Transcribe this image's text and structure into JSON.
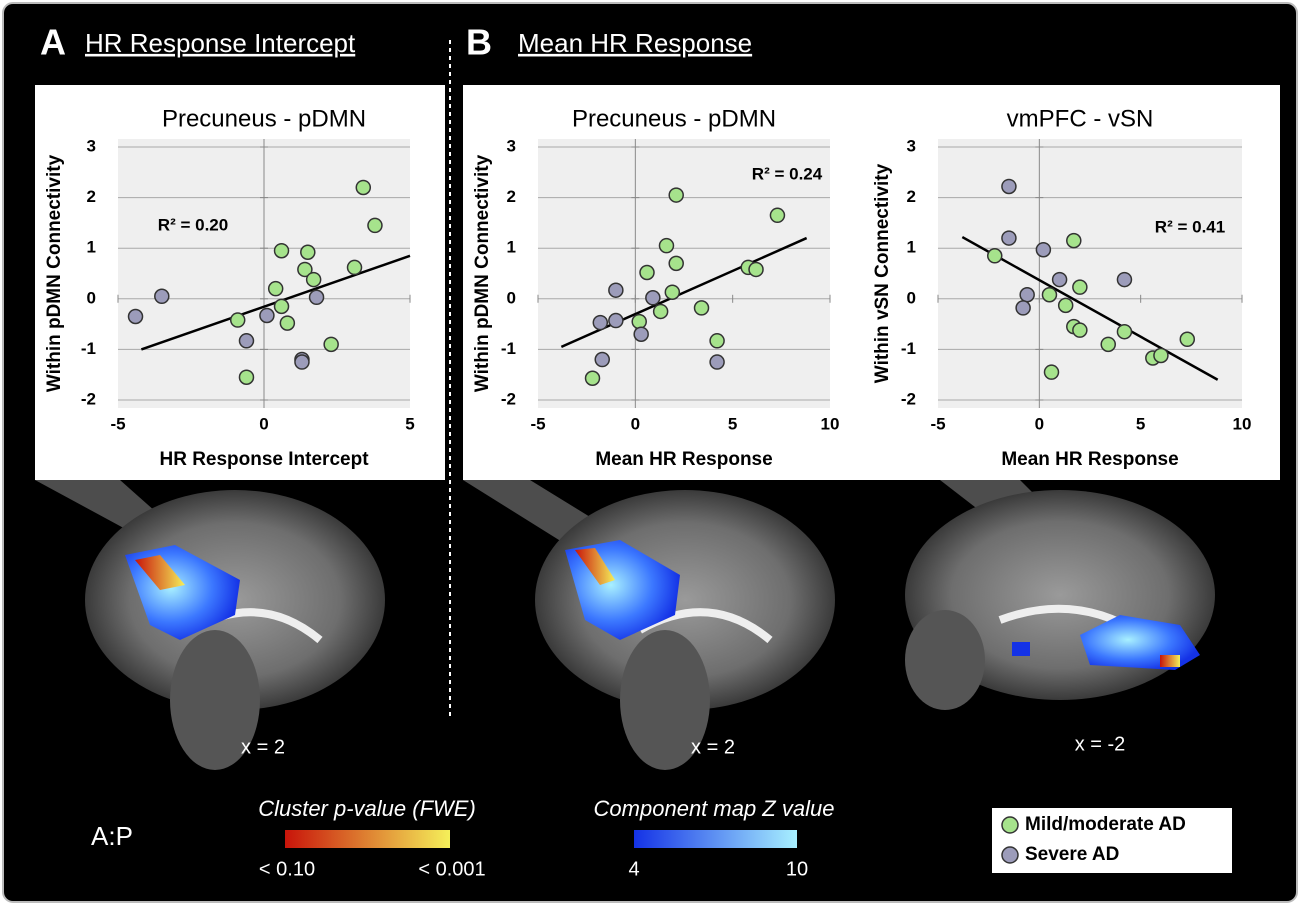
{
  "panels": [
    {
      "letter": "A",
      "title": "HR Response Intercept"
    },
    {
      "letter": "B",
      "title": "Mean HR Response"
    }
  ],
  "chart_data": [
    {
      "type": "scatter",
      "title": "Precuneus - pDMN",
      "x_label": "HR Response Intercept",
      "y_label": "Within pDMN Connectivity",
      "annotation": "R² = 0.20",
      "xlim": [
        -5,
        5
      ],
      "ylim": [
        -2,
        3
      ],
      "xticks": [
        -5,
        0,
        5
      ],
      "yticks": [
        -2,
        -1,
        0,
        1,
        2,
        3
      ],
      "grid": true,
      "series": [
        {
          "name": "Mild/moderate AD",
          "color": "#a6e38c",
          "x": [
            3.4,
            3.8,
            0.6,
            1.5,
            1.4,
            1.7,
            0.4,
            0.6,
            3.1,
            0.8,
            -0.9,
            2.3,
            -0.6
          ],
          "y": [
            2.2,
            1.45,
            0.95,
            0.92,
            0.58,
            0.38,
            0.2,
            -0.15,
            0.62,
            -0.48,
            -0.42,
            -0.9,
            -1.55
          ]
        },
        {
          "name": "Severe AD",
          "color": "#9c9cba",
          "x": [
            -4.4,
            -3.5,
            -0.6,
            0.1,
            1.8,
            1.3,
            1.3
          ],
          "y": [
            -0.35,
            0.05,
            -0.83,
            -0.33,
            0.03,
            -1.2,
            -1.25
          ]
        }
      ],
      "trendline": {
        "x": [
          -4.2,
          5
        ],
        "y": [
          -1.0,
          0.85
        ]
      }
    },
    {
      "type": "scatter",
      "title": "Precuneus - pDMN",
      "x_label": "Mean HR Response",
      "y_label": "Within pDMN Connectivity",
      "annotation": "R² = 0.24",
      "xlim": [
        -5,
        10
      ],
      "ylim": [
        -2,
        3
      ],
      "xticks": [
        -5,
        0,
        5,
        10
      ],
      "yticks": [
        -2,
        -1,
        0,
        1,
        2,
        3
      ],
      "grid": true,
      "series": [
        {
          "color": "#a6e38c",
          "x": [
            2.1,
            7.3,
            1.6,
            2.1,
            0.6,
            5.8,
            6.2,
            1.9,
            1.3,
            0.2,
            3.4,
            4.2,
            -2.2
          ],
          "y": [
            2.05,
            1.65,
            1.05,
            0.7,
            0.52,
            0.62,
            0.58,
            0.13,
            -0.25,
            -0.45,
            -0.18,
            -0.83,
            -1.57
          ]
        },
        {
          "color": "#9c9cba",
          "x": [
            -1.0,
            -1.8,
            -1.0,
            0.9,
            0.3,
            -1.7,
            4.2
          ],
          "y": [
            0.17,
            -0.47,
            -0.43,
            0.02,
            -0.7,
            -1.2,
            -1.25
          ]
        }
      ],
      "trendline": {
        "x": [
          -3.8,
          8.8
        ],
        "y": [
          -0.95,
          1.2
        ]
      }
    },
    {
      "type": "scatter",
      "title": "vmPFC - vSN",
      "x_label": "Mean HR Response",
      "y_label": "Within vSN Connectivity",
      "annotation": "R² = 0.41",
      "xlim": [
        -5,
        10
      ],
      "ylim": [
        -2,
        3
      ],
      "xticks": [
        -5,
        0,
        5,
        10
      ],
      "yticks": [
        -2,
        -1,
        0,
        1,
        2,
        3
      ],
      "grid": true,
      "series": [
        {
          "color": "#a6e38c",
          "x": [
            -2.2,
            1.7,
            0.5,
            1.3,
            2.0,
            1.7,
            2.0,
            4.2,
            3.4,
            0.6,
            5.6,
            6.0,
            7.3
          ],
          "y": [
            0.85,
            1.15,
            0.08,
            -0.13,
            0.23,
            -0.55,
            -0.62,
            -0.65,
            -0.9,
            -1.45,
            -1.17,
            -1.12,
            -0.8
          ]
        },
        {
          "color": "#9c9cba",
          "x": [
            -1.5,
            -1.5,
            0.2,
            -0.6,
            -0.8,
            1.0,
            4.2
          ],
          "y": [
            2.22,
            1.2,
            0.97,
            0.08,
            -0.18,
            0.38,
            0.38
          ]
        }
      ],
      "trendline": {
        "x": [
          -3.8,
          8.8
        ],
        "y": [
          1.22,
          -1.6
        ]
      }
    }
  ],
  "slice_labels": [
    "x = 2",
    "x = 2",
    "x = -2"
  ],
  "orientation": "A:P",
  "colorbars": [
    {
      "title": "Cluster p-value (FWE)",
      "low": "< 0.10",
      "high": "< 0.001",
      "colors": [
        "#c8140a",
        "#f5f05a"
      ]
    },
    {
      "title": "Component map Z value",
      "low": "4",
      "high": "10",
      "colors": [
        "#1432e6",
        "#a8f0ff"
      ]
    }
  ]
}
